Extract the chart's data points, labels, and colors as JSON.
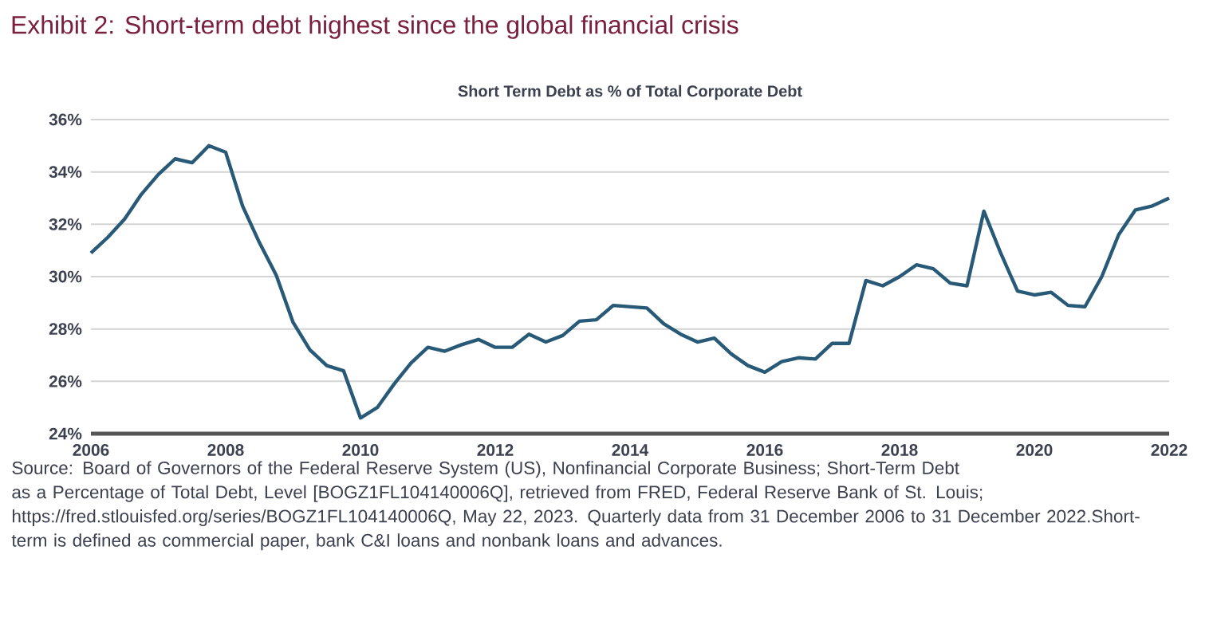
{
  "chart_data": {
    "type": "line",
    "title": "Exhibit 2: Short-term debt highest since the global financial crisis",
    "subtitle": "Short Term Debt as % of Total Corporate Debt",
    "x": [
      2006,
      2006.25,
      2006.5,
      2006.75,
      2007,
      2007.25,
      2007.5,
      2007.75,
      2008,
      2008.25,
      2008.5,
      2008.75,
      2009,
      2009.25,
      2009.5,
      2009.75,
      2010,
      2010.25,
      2010.5,
      2010.75,
      2011,
      2011.25,
      2011.5,
      2011.75,
      2012,
      2012.25,
      2012.5,
      2012.75,
      2013,
      2013.25,
      2013.5,
      2013.75,
      2014,
      2014.25,
      2014.5,
      2014.75,
      2015,
      2015.25,
      2015.5,
      2015.75,
      2016,
      2016.25,
      2016.5,
      2016.75,
      2017,
      2017.25,
      2017.5,
      2017.75,
      2018,
      2018.25,
      2018.5,
      2018.75,
      2019,
      2019.25,
      2019.5,
      2019.75,
      2020,
      2020.25,
      2020.5,
      2020.75,
      2021,
      2021.25,
      2021.5,
      2021.75,
      2022
    ],
    "series": [
      {
        "color": "#285a78",
        "values": [
          30.9,
          31.5,
          32.2,
          33.15,
          33.9,
          34.5,
          34.35,
          35.0,
          34.75,
          32.7,
          31.3,
          30.05,
          28.25,
          27.2,
          26.6,
          26.4,
          24.6,
          25.0,
          25.9,
          26.7,
          27.3,
          27.15,
          27.4,
          27.6,
          27.3,
          27.3,
          27.8,
          27.5,
          27.75,
          28.3,
          28.35,
          28.9,
          28.85,
          28.8,
          28.2,
          27.8,
          27.5,
          27.65,
          27.05,
          26.6,
          26.35,
          26.75,
          26.9,
          26.85,
          27.45,
          27.45,
          29.85,
          29.65,
          30.0,
          30.45,
          30.3,
          29.75,
          29.65,
          32.5,
          30.9,
          29.45,
          29.3,
          29.4,
          28.9,
          28.85,
          30.0,
          31.6,
          32.55,
          32.7,
          33.0
        ]
      }
    ],
    "xlim": [
      2006,
      2022
    ],
    "xticks": [
      2006,
      2008,
      2010,
      2012,
      2014,
      2016,
      2018,
      2020,
      2022
    ],
    "ylim": [
      24,
      36
    ],
    "yticks": [
      {
        "value": 24,
        "label": "24%"
      },
      {
        "value": 26,
        "label": "26%"
      },
      {
        "value": 28,
        "label": "28%"
      },
      {
        "value": 30,
        "label": "30%"
      },
      {
        "value": 32,
        "label": "32%"
      },
      {
        "value": 34,
        "label": "34%"
      },
      {
        "value": 36,
        "label": "36%"
      }
    ],
    "grid": "y",
    "annotations": [
      "Source: Board of Governors of the Federal Reserve System (US), Nonfinancial Corporate Business; Short-Term Debt as a Percentage of Total Debt, Level [BOGZ1FL104140006Q], retrieved from FRED, Federal Reserve Bank of St. Louis; https://fred.stlouisfed.org/series/BOGZ1FL104140006Q, May 22, 2023. Quarterly data from 31 December 2006 to 31 December 2022.Short-term is defined as commercial paper, bank C&I loans and nonbank loans and advances."
    ]
  }
}
